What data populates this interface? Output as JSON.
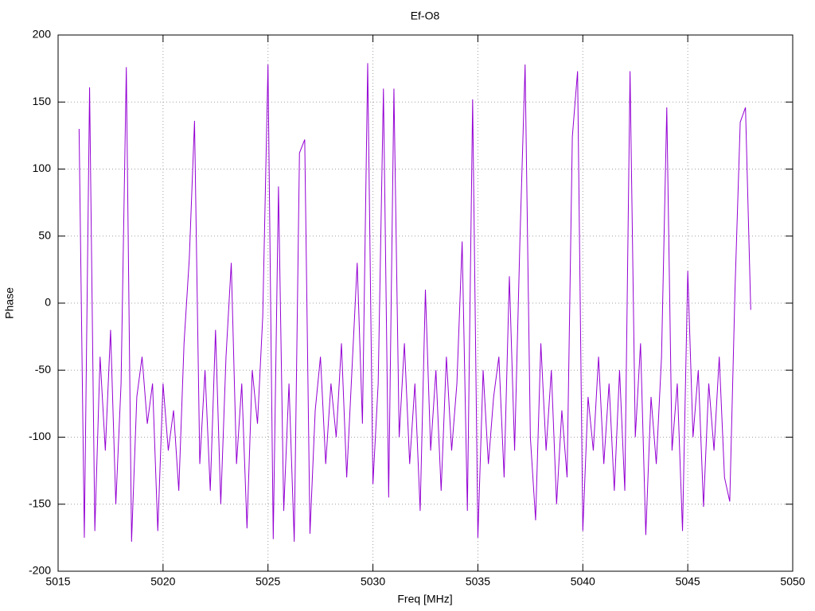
{
  "chart_data": {
    "type": "line",
    "title": "Ef-O8",
    "x_label": "Freq [MHz]",
    "y_label": "Phase",
    "color": "#9400d3",
    "grid": true,
    "xlim": [
      5015,
      5050
    ],
    "xticks": [
      5015,
      5020,
      5025,
      5030,
      5035,
      5040,
      5045,
      5050
    ],
    "ylim": [
      -200,
      200
    ],
    "yticks": [
      -200,
      -150,
      -100,
      -50,
      0,
      50,
      100,
      150,
      200
    ],
    "x": [
      5016.0,
      5016.25,
      5016.5,
      5016.75,
      5017.0,
      5017.25,
      5017.5,
      5017.75,
      5018.0,
      5018.25,
      5018.5,
      5018.75,
      5019.0,
      5019.25,
      5019.5,
      5019.75,
      5020.0,
      5020.25,
      5020.5,
      5020.75,
      5021.0,
      5021.25,
      5021.5,
      5021.75,
      5022.0,
      5022.25,
      5022.5,
      5022.75,
      5023.0,
      5023.25,
      5023.5,
      5023.75,
      5024.0,
      5024.25,
      5024.5,
      5024.75,
      5025.0,
      5025.25,
      5025.5,
      5025.75,
      5026.0,
      5026.25,
      5026.5,
      5026.75,
      5027.0,
      5027.25,
      5027.5,
      5027.75,
      5028.0,
      5028.25,
      5028.5,
      5028.75,
      5029.0,
      5029.25,
      5029.5,
      5029.75,
      5030.0,
      5030.25,
      5030.5,
      5030.75,
      5031.0,
      5031.25,
      5031.5,
      5031.75,
      5032.0,
      5032.25,
      5032.5,
      5032.75,
      5033.0,
      5033.25,
      5033.5,
      5033.75,
      5034.0,
      5034.25,
      5034.5,
      5034.75,
      5035.0,
      5035.25,
      5035.5,
      5035.75,
      5036.0,
      5036.25,
      5036.5,
      5036.75,
      5037.0,
      5037.25,
      5037.5,
      5037.75,
      5038.0,
      5038.25,
      5038.5,
      5038.75,
      5039.0,
      5039.25,
      5039.5,
      5039.75,
      5040.0,
      5040.25,
      5040.5,
      5040.75,
      5041.0,
      5041.25,
      5041.5,
      5041.75,
      5042.0,
      5042.25,
      5042.5,
      5042.75,
      5043.0,
      5043.25,
      5043.5,
      5043.75,
      5044.0,
      5044.25,
      5044.5,
      5044.75,
      5045.0,
      5045.25,
      5045.5,
      5045.75,
      5046.0,
      5046.25,
      5046.5,
      5046.75,
      5047.0,
      5047.25,
      5047.5,
      5047.75,
      5048.0
    ],
    "values": [
      130,
      -175,
      161,
      -170,
      -40,
      -110,
      -20,
      -150,
      -60,
      176,
      -178,
      -70,
      -40,
      -90,
      -60,
      -170,
      -60,
      -110,
      -80,
      -140,
      -30,
      33,
      136,
      -120,
      -50,
      -140,
      -20,
      -150,
      -40,
      30,
      -120,
      -60,
      -168,
      -50,
      -90,
      -10,
      178,
      -176,
      87,
      -155,
      -60,
      -178,
      112,
      122,
      -172,
      -80,
      -40,
      -120,
      -60,
      -100,
      -30,
      -130,
      -50,
      30,
      -90,
      179,
      -135,
      -60,
      160,
      -145,
      160,
      -100,
      -30,
      -120,
      -60,
      -155,
      10,
      -110,
      -50,
      -140,
      -40,
      -110,
      -60,
      46,
      -155,
      152,
      -175,
      -50,
      -120,
      -70,
      -40,
      -130,
      20,
      -110,
      45,
      178,
      -100,
      -162,
      -30,
      -110,
      -50,
      -150,
      -80,
      -130,
      124,
      173,
      -170,
      -70,
      -110,
      -40,
      -120,
      -60,
      -140,
      -50,
      -140,
      173,
      -100,
      -30,
      -173,
      -70,
      -120,
      -40,
      146,
      -110,
      -60,
      -170,
      24,
      -100,
      -50,
      -152,
      -60,
      -110,
      -40,
      -130,
      -148,
      10,
      135,
      146,
      -5
    ]
  }
}
